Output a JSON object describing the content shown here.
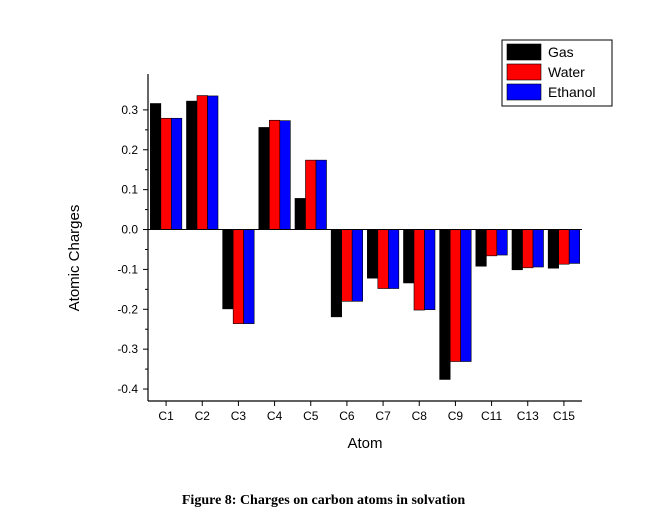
{
  "caption": "Figure 8: Charges on carbon atoms in solvation",
  "chart_data": {
    "type": "bar",
    "xlabel": "Atom",
    "ylabel": "Atomic Charges",
    "ylim": [
      -0.43,
      0.39
    ],
    "yticks": [
      -0.4,
      -0.3,
      -0.2,
      -0.1,
      0.0,
      0.1,
      0.2,
      0.3
    ],
    "ytick_labels": [
      "-0.4",
      "-0.3",
      "-0.2",
      "-0.1",
      "0.0",
      "0.1",
      "0.2",
      "0.3"
    ],
    "categories": [
      "C1",
      "C2",
      "C3",
      "C4",
      "C5",
      "C6",
      "C7",
      "C8",
      "C9",
      "C11",
      "C13",
      "C15"
    ],
    "legend_position": "top-right",
    "series": [
      {
        "name": "Gas",
        "color": "#000000",
        "values": [
          0.316,
          0.322,
          -0.199,
          0.256,
          0.078,
          -0.219,
          -0.122,
          -0.134,
          -0.376,
          -0.092,
          -0.101,
          -0.097
        ]
      },
      {
        "name": "Water",
        "color": "#ff0000",
        "values": [
          0.279,
          0.336,
          -0.236,
          0.274,
          0.174,
          -0.18,
          -0.148,
          -0.202,
          -0.331,
          -0.066,
          -0.096,
          -0.087
        ]
      },
      {
        "name": "Ethanol",
        "color": "#0000ff",
        "values": [
          0.279,
          0.335,
          -0.236,
          0.273,
          0.174,
          -0.18,
          -0.148,
          -0.201,
          -0.331,
          -0.064,
          -0.094,
          -0.085
        ]
      }
    ]
  }
}
